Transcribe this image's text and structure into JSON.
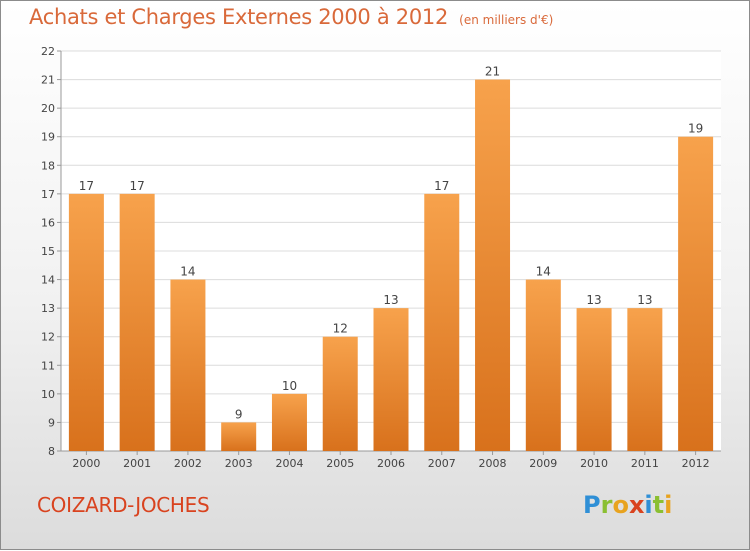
{
  "header": {
    "title": "Achats et Charges Externes 2000 à 2012",
    "subtitle": "(en milliers d'€)"
  },
  "footer": {
    "commune": "COIZARD-JOCHES",
    "logo_letters": [
      {
        "char": "P",
        "color": "#2f8fd6"
      },
      {
        "char": "r",
        "color": "#8bbf32"
      },
      {
        "char": "o",
        "color": "#e8a31f"
      },
      {
        "char": "x",
        "color": "#d9431f"
      },
      {
        "char": "i",
        "color": "#2f8fd6"
      },
      {
        "char": "t",
        "color": "#8bbf32"
      },
      {
        "char": "i",
        "color": "#e8a31f"
      }
    ]
  },
  "chart_data": {
    "type": "bar",
    "categories": [
      "2000",
      "2001",
      "2002",
      "2003",
      "2004",
      "2005",
      "2006",
      "2007",
      "2008",
      "2009",
      "2010",
      "2011",
      "2012"
    ],
    "values": [
      17,
      17,
      14,
      9,
      10,
      12,
      13,
      17,
      21,
      14,
      13,
      13,
      19
    ],
    "ylim": [
      8,
      22
    ],
    "yticks": [
      8,
      9,
      10,
      11,
      12,
      13,
      14,
      15,
      16,
      17,
      18,
      19,
      20,
      21,
      22
    ],
    "grid": true,
    "bar_color_top": "#f7a24c",
    "bar_color_bottom": "#d8711c"
  }
}
